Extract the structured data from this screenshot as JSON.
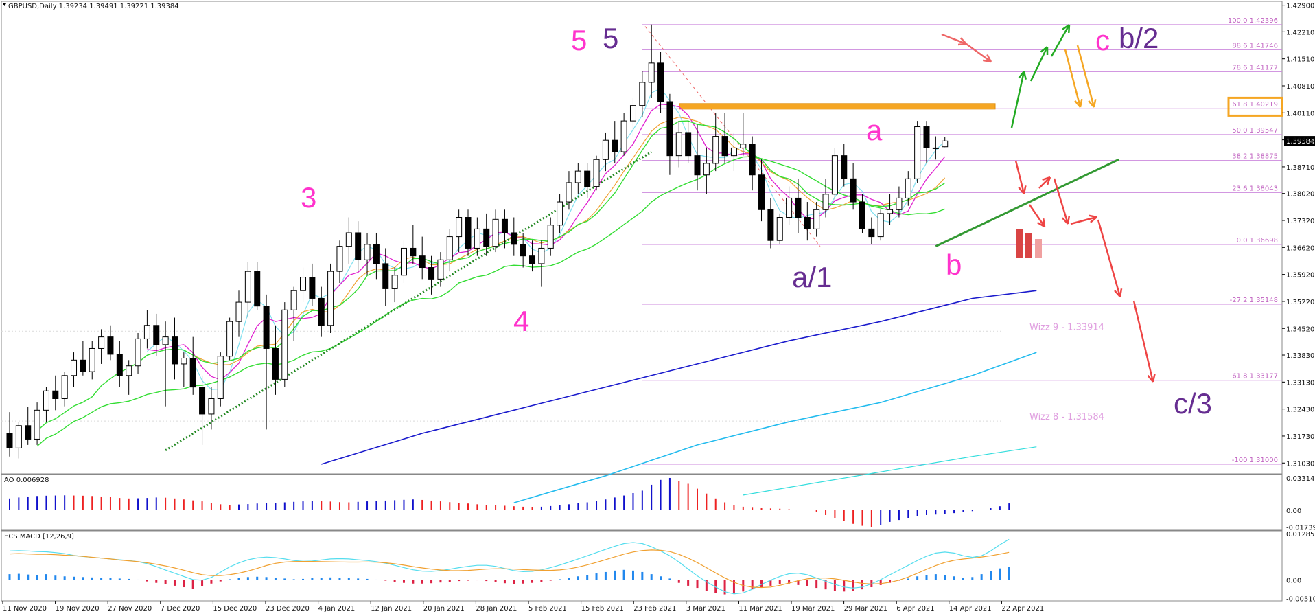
{
  "chart_data": {
    "type": "candlestick",
    "symbol_header": "GBPUSD,Daily  1.39234 1.39491 1.39221 1.39384",
    "current_price_label": "1.39384",
    "current_price": 1.39384,
    "price_axis_ticks": [
      "1.42900",
      "1.42210",
      "1.41510",
      "1.40810",
      "1.40110",
      "1.39410",
      "1.38710",
      "1.38020",
      "1.37320",
      "1.36620",
      "1.35920",
      "1.35220",
      "1.34520",
      "1.33830",
      "1.33130",
      "1.32430",
      "1.31730",
      "1.31030"
    ],
    "price_range": [
      1.3075,
      1.43
    ],
    "date_axis_ticks": [
      "11 Nov 2020",
      "19 Nov 2020",
      "27 Nov 2020",
      "7 Dec 2020",
      "15 Dec 2020",
      "23 Dec 2020",
      "4 Jan 2021",
      "12 Jan 2021",
      "20 Jan 2021",
      "28 Jan 2021",
      "5 Feb 2021",
      "15 Feb 2021",
      "23 Feb 2021",
      "3 Mar 2021",
      "11 Mar 2021",
      "19 Mar 2021",
      "29 Mar 2021",
      "6 Apr 2021",
      "14 Apr 2021",
      "22 Apr 2021"
    ],
    "candles": [
      [
        1.318,
        1.3235,
        1.312,
        1.3142
      ],
      [
        1.3142,
        1.321,
        1.3115,
        1.32
      ],
      [
        1.32,
        1.3248,
        1.315,
        1.3165
      ],
      [
        1.3165,
        1.326,
        1.315,
        1.324
      ],
      [
        1.324,
        1.33,
        1.321,
        1.329
      ],
      [
        1.329,
        1.333,
        1.324,
        1.327
      ],
      [
        1.327,
        1.334,
        1.325,
        1.333
      ],
      [
        1.333,
        1.339,
        1.33,
        1.337
      ],
      [
        1.337,
        1.342,
        1.333,
        1.334
      ],
      [
        1.334,
        1.342,
        1.332,
        1.34
      ],
      [
        1.34,
        1.345,
        1.336,
        1.343
      ],
      [
        1.343,
        1.346,
        1.337,
        1.3385
      ],
      [
        1.3385,
        1.342,
        1.33,
        1.333
      ],
      [
        1.333,
        1.337,
        1.328,
        1.3355
      ],
      [
        1.3355,
        1.344,
        1.3335,
        1.3425
      ],
      [
        1.3425,
        1.35,
        1.34,
        1.346
      ],
      [
        1.346,
        1.349,
        1.338,
        1.341
      ],
      [
        1.341,
        1.347,
        1.325,
        1.343
      ],
      [
        1.343,
        1.348,
        1.332,
        1.336
      ],
      [
        1.336,
        1.339,
        1.33,
        1.3375
      ],
      [
        1.3375,
        1.343,
        1.328,
        1.33
      ],
      [
        1.33,
        1.333,
        1.315,
        1.323
      ],
      [
        1.323,
        1.33,
        1.319,
        1.327
      ],
      [
        1.327,
        1.339,
        1.325,
        1.338
      ],
      [
        1.338,
        1.348,
        1.337,
        1.347
      ],
      [
        1.347,
        1.355,
        1.343,
        1.352
      ],
      [
        1.352,
        1.3625,
        1.348,
        1.36
      ],
      [
        1.36,
        1.3625,
        1.35,
        1.351
      ],
      [
        1.351,
        1.354,
        1.319,
        1.34
      ],
      [
        1.34,
        1.346,
        1.328,
        1.332
      ],
      [
        1.332,
        1.352,
        1.33,
        1.35
      ],
      [
        1.35,
        1.356,
        1.342,
        1.355
      ],
      [
        1.355,
        1.361,
        1.352,
        1.3585
      ],
      [
        1.3585,
        1.362,
        1.351,
        1.353
      ],
      [
        1.353,
        1.356,
        1.343,
        1.346
      ],
      [
        1.346,
        1.362,
        1.344,
        1.36
      ],
      [
        1.36,
        1.368,
        1.357,
        1.3665
      ],
      [
        1.3665,
        1.374,
        1.362,
        1.37
      ],
      [
        1.37,
        1.373,
        1.36,
        1.363
      ],
      [
        1.363,
        1.37,
        1.359,
        1.367
      ],
      [
        1.367,
        1.37,
        1.358,
        1.362
      ],
      [
        1.362,
        1.366,
        1.351,
        1.3555
      ],
      [
        1.3555,
        1.361,
        1.352,
        1.359
      ],
      [
        1.359,
        1.368,
        1.357,
        1.366
      ],
      [
        1.366,
        1.372,
        1.362,
        1.364
      ],
      [
        1.364,
        1.369,
        1.358,
        1.361
      ],
      [
        1.361,
        1.364,
        1.354,
        1.358
      ],
      [
        1.358,
        1.365,
        1.356,
        1.363
      ],
      [
        1.363,
        1.371,
        1.36,
        1.369
      ],
      [
        1.369,
        1.376,
        1.365,
        1.374
      ],
      [
        1.374,
        1.376,
        1.364,
        1.366
      ],
      [
        1.366,
        1.374,
        1.364,
        1.371
      ],
      [
        1.371,
        1.375,
        1.364,
        1.3665
      ],
      [
        1.3665,
        1.376,
        1.365,
        1.3735
      ],
      [
        1.3735,
        1.376,
        1.366,
        1.37
      ],
      [
        1.37,
        1.374,
        1.364,
        1.367
      ],
      [
        1.367,
        1.37,
        1.361,
        1.364
      ],
      [
        1.364,
        1.368,
        1.36,
        1.362
      ],
      [
        1.362,
        1.368,
        1.356,
        1.366
      ],
      [
        1.366,
        1.374,
        1.364,
        1.372
      ],
      [
        1.372,
        1.38,
        1.37,
        1.378
      ],
      [
        1.378,
        1.386,
        1.376,
        1.383
      ],
      [
        1.383,
        1.388,
        1.38,
        1.386
      ],
      [
        1.386,
        1.388,
        1.379,
        1.382
      ],
      [
        1.382,
        1.39,
        1.381,
        1.389
      ],
      [
        1.389,
        1.396,
        1.386,
        1.394
      ],
      [
        1.394,
        1.399,
        1.388,
        1.391
      ],
      [
        1.391,
        1.401,
        1.39,
        1.399
      ],
      [
        1.399,
        1.405,
        1.395,
        1.403
      ],
      [
        1.403,
        1.412,
        1.4,
        1.409
      ],
      [
        1.409,
        1.424,
        1.405,
        1.414
      ],
      [
        1.414,
        1.417,
        1.401,
        1.404
      ],
      [
        1.404,
        1.406,
        1.385,
        1.39
      ],
      [
        1.39,
        1.399,
        1.387,
        1.396
      ],
      [
        1.396,
        1.399,
        1.388,
        1.39
      ],
      [
        1.39,
        1.398,
        1.381,
        1.385
      ],
      [
        1.385,
        1.392,
        1.38,
        1.388
      ],
      [
        1.388,
        1.401,
        1.386,
        1.395
      ],
      [
        1.395,
        1.401,
        1.388,
        1.39
      ],
      [
        1.39,
        1.396,
        1.386,
        1.392
      ],
      [
        1.392,
        1.401,
        1.39,
        1.393
      ],
      [
        1.393,
        1.395,
        1.381,
        1.385
      ],
      [
        1.385,
        1.389,
        1.373,
        1.376
      ],
      [
        1.376,
        1.379,
        1.366,
        1.368
      ],
      [
        1.368,
        1.375,
        1.367,
        1.374
      ],
      [
        1.374,
        1.382,
        1.372,
        1.379
      ],
      [
        1.379,
        1.384,
        1.37,
        1.374
      ],
      [
        1.374,
        1.378,
        1.368,
        1.371
      ],
      [
        1.371,
        1.378,
        1.369,
        1.376
      ],
      [
        1.376,
        1.384,
        1.374,
        1.38
      ],
      [
        1.38,
        1.392,
        1.378,
        1.39
      ],
      [
        1.39,
        1.393,
        1.382,
        1.384
      ],
      [
        1.384,
        1.388,
        1.376,
        1.378
      ],
      [
        1.378,
        1.38,
        1.37,
        1.371
      ],
      [
        1.371,
        1.374,
        1.367,
        1.369
      ],
      [
        1.369,
        1.376,
        1.368,
        1.375
      ],
      [
        1.375,
        1.38,
        1.372,
        1.376
      ],
      [
        1.376,
        1.382,
        1.374,
        1.379
      ],
      [
        1.379,
        1.386,
        1.377,
        1.384
      ],
      [
        1.384,
        1.399,
        1.383,
        1.3975
      ],
      [
        1.3975,
        1.399,
        1.388,
        1.392
      ],
      [
        1.392,
        1.395,
        1.389,
        1.392
      ],
      [
        1.3923,
        1.3949,
        1.3922,
        1.3938
      ]
    ],
    "fibonacci_levels": [
      {
        "label": "100.0 1.42396",
        "price": 1.42396
      },
      {
        "label": "88.6 1.41746",
        "price": 1.41746
      },
      {
        "label": "78.6 1.41177",
        "price": 1.41177
      },
      {
        "label": "61.8 1.40219",
        "price": 1.40219
      },
      {
        "label": "50.0 1.39547",
        "price": 1.39547
      },
      {
        "label": "38.2 1.38875",
        "price": 1.38875
      },
      {
        "label": "23.6 1.38043",
        "price": 1.38043
      },
      {
        "label": "0.0 1.36698",
        "price": 1.36698
      },
      {
        "label": "-27.2 1.35148",
        "price": 1.35148
      },
      {
        "label": "-61.8 1.33177",
        "price": 1.33177
      },
      {
        "label": "-100 1.31000",
        "price": 1.31
      }
    ],
    "wizz_levels": [
      {
        "label": "Wizz 9 - 1.33914",
        "price": 1.33914
      },
      {
        "label": "Wizz 8 - 1.31584",
        "price": 1.31584
      }
    ],
    "wave_labels": [
      {
        "text": "5",
        "color": "#ff33cc"
      },
      {
        "text": "5",
        "color": "#662d91"
      },
      {
        "text": "3",
        "color": "#ff33cc"
      },
      {
        "text": "4",
        "color": "#ff33cc"
      },
      {
        "text": "a",
        "color": "#ff33cc"
      },
      {
        "text": "a/1",
        "color": "#662d91"
      },
      {
        "text": "b",
        "color": "#ff33cc"
      },
      {
        "text": "c",
        "color": "#ff33cc"
      },
      {
        "text": "b/2",
        "color": "#662d91"
      },
      {
        "text": "c/3",
        "color": "#662d91"
      }
    ],
    "ao": {
      "label": "AO 0.006928",
      "ticks": [
        "0.033142",
        "0.00",
        "-0.017396"
      ],
      "range": [
        -0.0205,
        0.0365
      ],
      "values": [
        0.012,
        0.013,
        0.014,
        0.0145,
        0.0148,
        0.015,
        0.0152,
        0.015,
        0.0148,
        0.0145,
        0.014,
        0.0135,
        0.0125,
        0.012,
        0.0122,
        0.0125,
        0.013,
        0.0128,
        0.012,
        0.011,
        0.01,
        0.009,
        0.0075,
        0.006,
        0.0055,
        0.0058,
        0.0062,
        0.0068,
        0.007,
        0.0072,
        0.008,
        0.0085,
        0.009,
        0.0095,
        0.0092,
        0.0088,
        0.0082,
        0.008,
        0.0085,
        0.009,
        0.0095,
        0.0098,
        0.0102,
        0.0106,
        0.011,
        0.0105,
        0.0098,
        0.009,
        0.0082,
        0.0075,
        0.0068,
        0.006,
        0.0055,
        0.005,
        0.0045,
        0.004,
        0.0035,
        0.003,
        0.0035,
        0.0042,
        0.005,
        0.006,
        0.007,
        0.008,
        0.0095,
        0.011,
        0.013,
        0.015,
        0.0175,
        0.02,
        0.026,
        0.031,
        0.033,
        0.03,
        0.027,
        0.022,
        0.017,
        0.012,
        0.008,
        0.005,
        0.0035,
        0.0025,
        0.002,
        0.0018,
        0.0015,
        0.001,
        0.0005,
        0.0002,
        -0.002,
        -0.005,
        -0.008,
        -0.011,
        -0.014,
        -0.016,
        -0.017,
        -0.015,
        -0.012,
        -0.01,
        -0.008,
        -0.006,
        -0.005,
        -0.0045,
        -0.004,
        -0.003,
        -0.002,
        -0.001,
        0.0002,
        0.002,
        0.004,
        0.0069
      ]
    },
    "macd": {
      "label": "ECS MACD [12,26,9]",
      "ticks": [
        "0.012855",
        "0.00",
        "-0.005104"
      ],
      "range": [
        -0.0058,
        0.0136
      ],
      "values": [
        0.0016,
        0.0017,
        0.0015,
        0.0014,
        0.0016,
        0.0012,
        0.001,
        0.0009,
        0.0008,
        0.0007,
        0.0006,
        0.0005,
        0.0004,
        0.0003,
        0.0001,
        -0.0004,
        -0.0008,
        -0.0012,
        -0.0016,
        -0.002,
        -0.0024,
        -0.0018,
        -0.001,
        -0.0004,
        0.0002,
        0.0005,
        0.0008,
        0.0009,
        0.0008,
        0.0006,
        0.0004,
        0.0002,
        0.0003,
        0.0005,
        0.0006,
        0.0007,
        0.0006,
        0.0005,
        0.0004,
        0.0003,
        0.0001,
        -0.0002,
        -0.0005,
        -0.0008,
        -0.001,
        -0.001,
        -0.0009,
        -0.0007,
        -0.0005,
        -0.0003,
        -0.0002,
        -0.0001,
        -0.0003,
        -0.0006,
        -0.0009,
        -0.0011,
        -0.001,
        -0.0008,
        -0.0005,
        -0.0002,
        0.0002,
        0.0006,
        0.001,
        0.0014,
        0.0018,
        0.0022,
        0.0026,
        0.0028,
        0.0026,
        0.0022,
        0.0016,
        0.001,
        0.0004,
        -0.0008,
        -0.0016,
        -0.0022,
        -0.003,
        -0.0036,
        -0.004,
        -0.0038,
        -0.0032,
        -0.0026,
        -0.002,
        -0.0016,
        -0.0012,
        -0.001,
        -0.0014,
        -0.0018,
        -0.0022,
        -0.0026,
        -0.003,
        -0.0032,
        -0.003,
        -0.0026,
        -0.002,
        -0.0014,
        -0.0008,
        -0.0002,
        0.0004,
        0.001,
        0.0014,
        0.0016,
        0.0014,
        0.001,
        0.0006,
        0.0008,
        0.0016,
        0.0024,
        0.0032,
        0.0036
      ]
    }
  }
}
